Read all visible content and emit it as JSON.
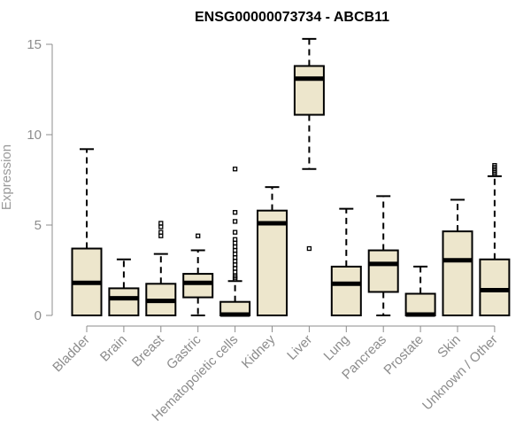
{
  "chart_data": {
    "type": "boxplot",
    "title": "ENSG00000073734 - ABCB11",
    "xlabel": "",
    "ylabel": "Expression",
    "ylim": [
      0,
      15
    ],
    "yticks": [
      "0",
      "5",
      "10",
      "15"
    ],
    "grid": false,
    "legend": "none",
    "box_fill": "#EDE6CC",
    "line_color": "#000000",
    "categories": [
      "Bladder",
      "Brain",
      "Breast",
      "Gastric",
      "Hematopoietic cells",
      "Kidney",
      "Liver",
      "Lung",
      "Pancreas",
      "Prostate",
      "Skin",
      "Unknown / Other"
    ],
    "boxes": [
      {
        "category": "Bladder",
        "min": 0,
        "q1": 0,
        "median": 1.8,
        "q3": 3.7,
        "max": 9.2,
        "outliers": []
      },
      {
        "category": "Brain",
        "min": 0,
        "q1": 0,
        "median": 0.95,
        "q3": 1.5,
        "max": 3.1,
        "outliers": []
      },
      {
        "category": "Breast",
        "min": 0,
        "q1": 0,
        "median": 0.8,
        "q3": 1.75,
        "max": 3.4,
        "outliers": [
          4.4,
          4.6,
          4.9,
          5.1
        ]
      },
      {
        "category": "Gastric",
        "min": 0,
        "q1": 1.0,
        "median": 1.8,
        "q3": 2.3,
        "max": 3.6,
        "outliers": [
          4.4
        ]
      },
      {
        "category": "Hematopoietic cells",
        "min": 0,
        "q1": 0,
        "median": 0.05,
        "q3": 0.75,
        "max": 1.9,
        "outliers": [
          2.0,
          2.1,
          2.2,
          2.4,
          2.6,
          2.8,
          3.0,
          3.2,
          3.4,
          3.6,
          3.8,
          4.0,
          4.2,
          4.6,
          5.2,
          5.7,
          8.1
        ]
      },
      {
        "category": "Kidney",
        "min": 0,
        "q1": 0,
        "median": 5.1,
        "q3": 5.8,
        "max": 7.1,
        "outliers": []
      },
      {
        "category": "Liver",
        "min": 8.1,
        "q1": 11.1,
        "median": 13.1,
        "q3": 13.8,
        "max": 15.3,
        "outliers": [
          3.7
        ]
      },
      {
        "category": "Lung",
        "min": 0,
        "q1": 0,
        "median": 1.75,
        "q3": 2.7,
        "max": 5.9,
        "outliers": []
      },
      {
        "category": "Pancreas",
        "min": 0,
        "q1": 1.3,
        "median": 2.85,
        "q3": 3.6,
        "max": 6.6,
        "outliers": []
      },
      {
        "category": "Prostate",
        "min": 0,
        "q1": 0,
        "median": 0.05,
        "q3": 1.2,
        "max": 2.7,
        "outliers": []
      },
      {
        "category": "Skin",
        "min": 0,
        "q1": 0,
        "median": 3.05,
        "q3": 4.65,
        "max": 6.4,
        "outliers": []
      },
      {
        "category": "Unknown / Other",
        "min": 0,
        "q1": 0,
        "median": 1.4,
        "q3": 3.1,
        "max": 7.7,
        "outliers": [
          7.8,
          7.9,
          8.0,
          8.1,
          8.2,
          8.3
        ]
      }
    ]
  }
}
